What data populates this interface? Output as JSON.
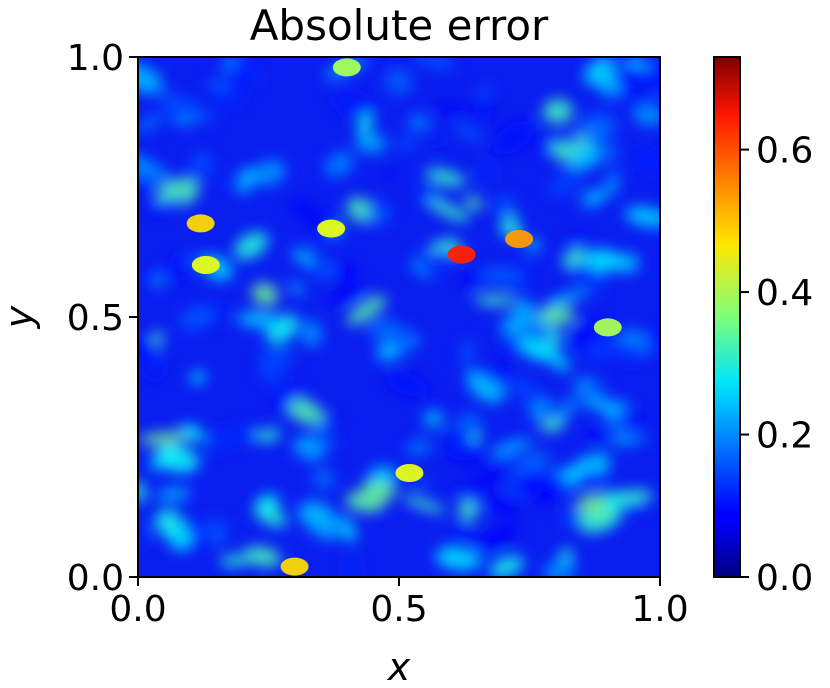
{
  "chart_data": {
    "type": "heatmap",
    "title": "Absolute error",
    "xlabel": "x",
    "ylabel": "y",
    "xlim": [
      0.0,
      1.0
    ],
    "ylim": [
      0.0,
      1.0
    ],
    "x_ticks": [
      0.0,
      0.5,
      1.0
    ],
    "x_tick_labels": [
      "0.0",
      "0.5",
      "1.0"
    ],
    "y_ticks": [
      0.0,
      0.5,
      1.0
    ],
    "y_tick_labels": [
      "0.0",
      "0.5",
      "1.0"
    ],
    "colormap": "jet",
    "colorbar": {
      "range": [
        0.0,
        0.73
      ],
      "ticks": [
        0.0,
        0.2,
        0.4,
        0.6
      ],
      "tick_labels": [
        "0.0",
        "0.2",
        "0.4",
        "0.6"
      ],
      "placement": "right"
    },
    "hotspots": [
      {
        "x": 0.62,
        "y": 0.62,
        "value": 0.6
      },
      {
        "x": 0.73,
        "y": 0.65,
        "value": 0.5
      },
      {
        "x": 0.12,
        "y": 0.68,
        "value": 0.45
      },
      {
        "x": 0.37,
        "y": 0.67,
        "value": 0.4
      },
      {
        "x": 0.52,
        "y": 0.2,
        "value": 0.4
      },
      {
        "x": 0.3,
        "y": 0.02,
        "value": 0.45
      },
      {
        "x": 0.13,
        "y": 0.6,
        "value": 0.4
      },
      {
        "x": 0.9,
        "y": 0.48,
        "value": 0.35
      },
      {
        "x": 0.4,
        "y": 0.98,
        "value": 0.35
      }
    ],
    "grid": false
  }
}
